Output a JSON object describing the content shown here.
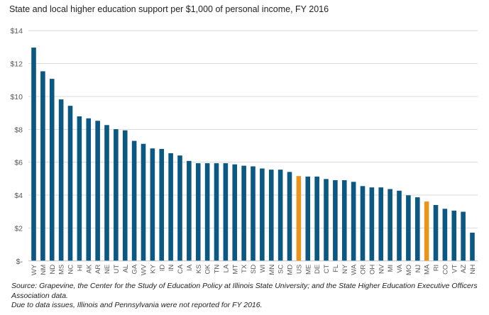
{
  "chart_data": {
    "type": "bar",
    "title": "State and local higher education support per $1,000 of personal income, FY 2016",
    "xlabel": "",
    "ylabel": "",
    "ylim": [
      0,
      14
    ],
    "yticks": [
      0,
      2,
      4,
      6,
      8,
      10,
      12,
      14
    ],
    "ytick_labels": [
      "$-",
      "$2",
      "$4",
      "$6",
      "$8",
      "$10",
      "$12",
      "$14"
    ],
    "grid": true,
    "legend": "none",
    "categories": [
      "WY",
      "NM",
      "ND",
      "MS",
      "NC",
      "HI",
      "AK",
      "AR",
      "NE",
      "UT",
      "AL",
      "GA",
      "WV",
      "KY",
      "ID",
      "IN",
      "CA",
      "IA",
      "KS",
      "OK",
      "TN",
      "LA",
      "MT",
      "TX",
      "SD",
      "WI",
      "MN",
      "SC",
      "MD",
      "US",
      "ME",
      "DE",
      "CT",
      "FL",
      "NY",
      "WA",
      "OR",
      "OH",
      "NV",
      "MI",
      "VA",
      "MO",
      "NJ",
      "MA",
      "RI",
      "CO",
      "VT",
      "AZ",
      "NH"
    ],
    "values": [
      12.97,
      11.53,
      11.07,
      9.82,
      9.43,
      8.79,
      8.67,
      8.52,
      8.26,
      8.01,
      7.94,
      7.3,
      7.12,
      6.84,
      6.81,
      6.55,
      6.41,
      6.08,
      5.94,
      5.94,
      5.94,
      5.94,
      5.87,
      5.79,
      5.75,
      5.62,
      5.55,
      5.55,
      5.41,
      5.16,
      5.13,
      5.13,
      4.98,
      4.91,
      4.91,
      4.81,
      4.55,
      4.47,
      4.47,
      4.37,
      4.27,
      3.99,
      3.87,
      3.61,
      3.4,
      3.17,
      3.06,
      2.99,
      1.72
    ],
    "highlighted": [
      "US",
      "MA"
    ],
    "colors": {
      "default": "#0B5882",
      "highlight": "#E8951E",
      "grid": "#D9D9D9",
      "axis": "#BFBFBF"
    }
  },
  "notes": {
    "source_line1": "Source: Grapevine, the Center for the Study of Education Policy at Illinois State University; and the State Higher Education Executive Officers",
    "source_line2": "Association data.",
    "footnote": "Due to data issues, Illinois and Pennsylvania were not reported for FY 2016."
  }
}
